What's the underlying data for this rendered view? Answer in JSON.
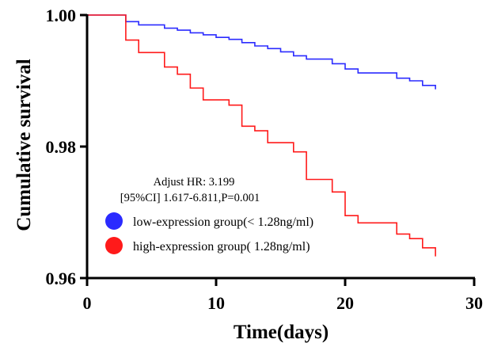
{
  "chart_data": {
    "type": "line",
    "xlabel": "Time(days)",
    "ylabel": "Cumulative survival",
    "xlim": [
      0,
      30
    ],
    "ylim": [
      0.96,
      1.0
    ],
    "x_ticks": [
      "0",
      "10",
      "20",
      "30"
    ],
    "y_ticks": [
      "1.00",
      "0.98",
      "0.96"
    ],
    "grid": false,
    "annotations": [
      "Adjust HR: 3.199",
      "[95%CI] 1.617-6.811,P=0.001"
    ],
    "legend_position": "lower-left",
    "series": [
      {
        "name": "low-expression group(< 1.28ng/ml)",
        "color": "#2b2bff",
        "x": [
          0,
          3,
          4,
          6,
          7,
          8,
          9,
          10,
          11,
          12,
          13,
          14,
          15,
          16,
          17,
          19,
          20,
          21,
          24,
          25,
          26,
          27
        ],
        "y": [
          1.0,
          0.999,
          0.9985,
          0.998,
          0.9977,
          0.9973,
          0.997,
          0.9966,
          0.9963,
          0.9958,
          0.9953,
          0.9949,
          0.9944,
          0.9938,
          0.9933,
          0.9926,
          0.9918,
          0.9912,
          0.9904,
          0.99,
          0.9893,
          0.9887
        ]
      },
      {
        "name": "high-expression group( 1.28ng/ml)",
        "color": "#ff1a1a",
        "x": [
          0,
          3,
          4,
          6,
          7,
          8,
          9,
          11,
          12,
          13,
          14,
          16,
          17,
          19,
          20,
          21,
          24,
          25,
          26,
          27
        ],
        "y": [
          1.0,
          0.9962,
          0.9943,
          0.9921,
          0.991,
          0.9889,
          0.9871,
          0.9863,
          0.9831,
          0.9824,
          0.9806,
          0.9792,
          0.975,
          0.9731,
          0.9695,
          0.9684,
          0.9667,
          0.966,
          0.9646,
          0.9633
        ]
      }
    ]
  }
}
